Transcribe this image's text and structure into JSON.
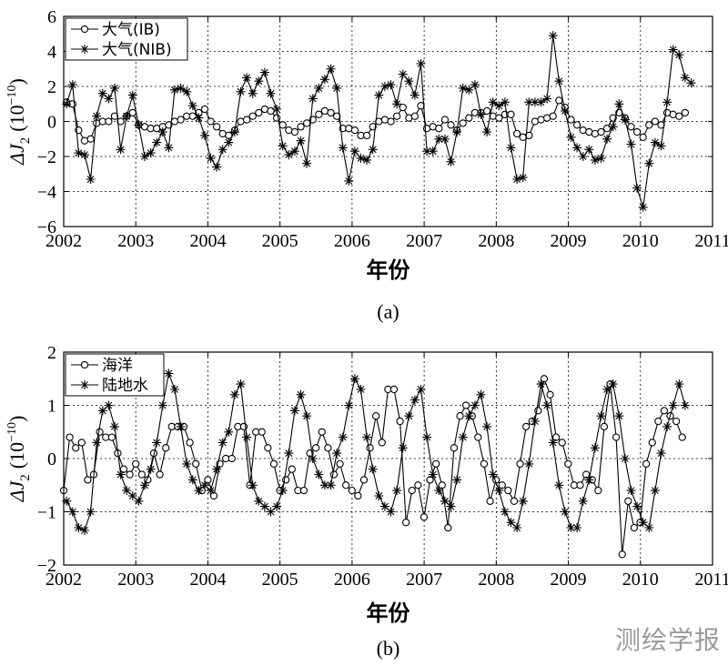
{
  "chart_data": [
    {
      "type": "line",
      "caption": "(a)",
      "xlabel": "年份",
      "ylabel": "ΔJ₂ (10⁻¹⁰)",
      "ylabel_main": "ΔJ",
      "ylabel_sub": "2",
      "ylabel_unit": "(10",
      "ylabel_exp": "−10",
      "ylabel_close": ")",
      "xlim": [
        2002,
        2011
      ],
      "ylim": [
        -6,
        6
      ],
      "x_ticks": [
        "2002",
        "2003",
        "2004",
        "2005",
        "2006",
        "2007",
        "2008",
        "2009",
        "2010",
        "2011"
      ],
      "y_ticks": [
        "−6",
        "−4",
        "−2",
        "0",
        "2",
        "4",
        "6"
      ],
      "legend_position": "top-left",
      "series": [
        {
          "name": "大气(IB)",
          "marker": "circle",
          "x_start": 2002.04,
          "x_step": 0.0833,
          "values": [
            1.1,
            1.0,
            -0.5,
            -1.1,
            -1.0,
            -0.1,
            0.0,
            0.0,
            0.3,
            0.0,
            0.3,
            0.5,
            -0.2,
            -0.3,
            -0.4,
            -0.4,
            -0.3,
            -0.2,
            0.0,
            0.1,
            0.3,
            0.3,
            0.5,
            0.7,
            0.0,
            -0.3,
            -0.7,
            -0.8,
            -0.5,
            0.0,
            0.1,
            0.3,
            0.5,
            0.7,
            0.6,
            0.2,
            -0.2,
            -0.5,
            -0.6,
            -0.3,
            -0.1,
            0.1,
            0.4,
            0.6,
            0.5,
            0.3,
            -0.4,
            -0.4,
            -0.5,
            -0.8,
            -0.8,
            -0.3,
            0.0,
            0.1,
            0.0,
            0.3,
            0.8,
            0.2,
            0.3,
            0.9,
            -0.4,
            -0.3,
            -0.4,
            0.1,
            -0.2,
            -0.5,
            -0.1,
            0.2,
            0.5,
            0.5,
            0.6,
            0.3,
            0.2,
            0.4,
            0.4,
            -0.7,
            -0.9,
            -0.8,
            0.0,
            0.1,
            0.2,
            0.3,
            1.2,
            0.8,
            0.1,
            -0.2,
            -0.5,
            -0.6,
            -0.7,
            -0.6,
            -0.4,
            0.2,
            0.5,
            0.2,
            -0.3,
            -0.6,
            -0.9,
            -0.2,
            0.0,
            -0.2,
            0.5,
            0.4,
            0.3,
            0.5
          ]
        },
        {
          "name": "大气(NIB)",
          "marker": "star",
          "x_start": 2002.04,
          "x_step": 0.0833,
          "values": [
            1.0,
            2.1,
            -1.8,
            -1.9,
            -3.3,
            0.3,
            1.6,
            1.3,
            1.9,
            -1.6,
            0.3,
            1.5,
            -0.2,
            -2.0,
            -1.8,
            -1.2,
            -0.6,
            -1.5,
            1.8,
            1.9,
            1.7,
            0.9,
            0.2,
            -0.8,
            -2.1,
            -2.6,
            -1.6,
            -1.2,
            -0.6,
            1.7,
            2.5,
            1.6,
            2.3,
            2.8,
            1.6,
            0.7,
            -1.4,
            -1.9,
            -1.7,
            -1.1,
            -2.4,
            1.3,
            1.9,
            2.4,
            3.0,
            1.9,
            -1.5,
            -3.4,
            -1.7,
            -2.1,
            -2.2,
            -1.6,
            1.5,
            2.0,
            2.1,
            1.0,
            2.7,
            2.3,
            1.5,
            3.3,
            -1.7,
            -1.7,
            -1.0,
            -1.0,
            -2.3,
            -0.6,
            1.9,
            1.8,
            2.1,
            0.4,
            -0.6,
            1.1,
            0.9,
            1.1,
            -1.5,
            -3.3,
            -3.2,
            1.1,
            1.1,
            1.1,
            1.3,
            4.9,
            2.3,
            0.6,
            -0.9,
            -1.5,
            -2.0,
            -1.6,
            -2.2,
            -2.1,
            -1.0,
            -0.3,
            1.0,
            0.1,
            -1.3,
            -3.8,
            -4.9,
            -2.4,
            -1.2,
            -1.4,
            1.1,
            4.1,
            3.8,
            2.5,
            2.2
          ]
        }
      ]
    },
    {
      "type": "line",
      "caption": "(b)",
      "xlabel": "年份",
      "ylabel": "ΔJ₂ (10⁻¹⁰)",
      "ylabel_main": "ΔJ",
      "ylabel_sub": "2",
      "ylabel_unit": "(10",
      "ylabel_exp": "−10",
      "ylabel_close": ")",
      "xlim": [
        2002,
        2011
      ],
      "ylim": [
        -2,
        2
      ],
      "x_ticks": [
        "2002",
        "2003",
        "2004",
        "2005",
        "2006",
        "2007",
        "2008",
        "2009",
        "2010",
        "2011"
      ],
      "y_ticks": [
        "−2",
        "−1",
        "0",
        "1",
        "2"
      ],
      "legend_position": "top-left",
      "series": [
        {
          "name": "海洋",
          "marker": "circle",
          "x_start": 2002.0,
          "x_step": 0.0833,
          "values": [
            -0.6,
            0.4,
            0.2,
            0.3,
            -0.4,
            -0.3,
            0.5,
            0.4,
            0.4,
            0.1,
            -0.2,
            -0.3,
            -0.1,
            -0.3,
            -0.4,
            0.1,
            -0.3,
            0.2,
            0.6,
            0.6,
            0.6,
            0.3,
            -0.1,
            -0.6,
            -0.4,
            -0.7,
            -0.1,
            0.0,
            0.0,
            0.6,
            0.6,
            -0.5,
            0.5,
            0.5,
            0.2,
            -0.1,
            -0.6,
            -0.4,
            -0.2,
            -0.6,
            -0.6,
            0.1,
            0.2,
            0.5,
            0.2,
            -0.3,
            -0.1,
            -0.5,
            -0.6,
            -0.7,
            -0.4,
            0.2,
            0.8,
            0.3,
            1.3,
            1.3,
            0.7,
            -1.2,
            -0.6,
            -0.5,
            -1.1,
            -0.4,
            -0.1,
            -0.5,
            -1.3,
            0.2,
            0.8,
            1.0,
            0.8,
            0.4,
            -0.1,
            -0.8,
            -0.4,
            -0.5,
            -0.6,
            -0.8,
            -0.1,
            0.6,
            0.7,
            0.9,
            1.5,
            1.2,
            0.4,
            0.3,
            -0.1,
            -0.5,
            -0.5,
            -0.3,
            -0.4,
            -0.6,
            0.6,
            1.4,
            0.4,
            -1.8,
            -0.8,
            -1.3,
            -1.2,
            -0.1,
            0.3,
            0.7,
            0.9,
            0.8,
            0.7,
            0.4
          ]
        },
        {
          "name": "陆地水",
          "marker": "star",
          "x_start": 2002.04,
          "x_step": 0.0833,
          "values": [
            -0.8,
            -1.0,
            -1.3,
            -1.35,
            -1.0,
            0.3,
            0.9,
            1.0,
            0.6,
            -0.3,
            -0.6,
            -0.7,
            -0.8,
            -0.5,
            -0.2,
            0.3,
            1.0,
            1.6,
            1.3,
            0.6,
            -0.1,
            -0.4,
            -0.6,
            -0.5,
            -0.6,
            -0.2,
            0.3,
            0.5,
            1.2,
            1.4,
            0.4,
            -0.5,
            -0.8,
            -0.9,
            -1.0,
            -0.9,
            -0.6,
            0.1,
            0.9,
            1.2,
            0.8,
            0.0,
            -0.3,
            -0.5,
            -0.5,
            0.1,
            0.4,
            1.0,
            1.5,
            1.3,
            0.4,
            -0.2,
            -0.7,
            -0.9,
            -1.0,
            -0.6,
            0.2,
            0.8,
            1.1,
            1.3,
            0.4,
            -0.3,
            -0.6,
            -0.8,
            -0.9,
            -0.4,
            0.4,
            0.8,
            1.0,
            1.2,
            0.6,
            -0.3,
            -0.6,
            -1.0,
            -1.2,
            -1.3,
            -0.8,
            -0.1,
            0.7,
            1.4,
            1.0,
            0.3,
            -0.5,
            -1.0,
            -1.3,
            -1.3,
            -0.8,
            -0.4,
            0.2,
            0.8,
            1.3,
            1.4,
            0.8,
            0.0,
            -0.6,
            -0.9,
            -1.2,
            -1.3,
            -0.6,
            0.1,
            0.6,
            1.0,
            1.4,
            1.0
          ]
        }
      ]
    }
  ],
  "watermark": "测绘学报"
}
